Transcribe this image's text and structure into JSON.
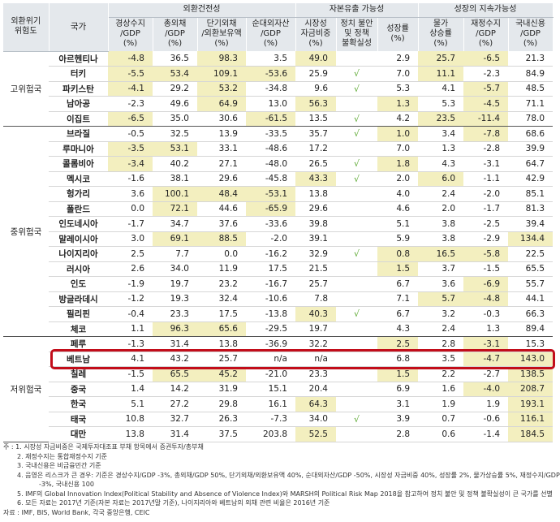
{
  "header": {
    "risk_group": "외환위기\n위험도",
    "country": "국가",
    "groups": [
      "외환건전성",
      "자본유출 가능성",
      "성장의 지속가능성"
    ],
    "columns": [
      "경상수지\n/GDP\n(%)",
      "총외채\n/GDP\n(%)",
      "단기외채\n/외환보유액\n(%)",
      "순대외자산\n/GDP\n(%)",
      "시장성\n자금비중\n(%)",
      "정치 불안\n및 정책\n불확실성",
      "성장률\n(%)",
      "물가\n상승률\n(%)",
      "재정수지\n/GDP\n(%)",
      "국내신용\n/GDP\n(%)"
    ]
  },
  "groups": [
    {
      "label": "고위험국",
      "rows": [
        {
          "country": "아르헨티나",
          "values": [
            "-4.8",
            "36.5",
            "98.3",
            "3.5",
            "49.0",
            "",
            "2.9",
            "25.7",
            "-6.5",
            "21.3"
          ],
          "hl": [
            1,
            0,
            1,
            0,
            1,
            0,
            0,
            1,
            1,
            0
          ]
        },
        {
          "country": "터키",
          "values": [
            "-5.5",
            "53.4",
            "109.1",
            "-53.6",
            "25.9",
            "√",
            "7.0",
            "11.1",
            "-2.3",
            "84.9"
          ],
          "hl": [
            1,
            1,
            1,
            1,
            0,
            0,
            0,
            1,
            0,
            0
          ]
        },
        {
          "country": "파키스탄",
          "values": [
            "-4.1",
            "29.2",
            "53.2",
            "-34.8",
            "9.6",
            "√",
            "5.3",
            "4.1",
            "-5.7",
            "48.5"
          ],
          "hl": [
            1,
            0,
            1,
            0,
            0,
            0,
            0,
            0,
            1,
            0
          ]
        },
        {
          "country": "남아공",
          "values": [
            "-2.3",
            "49.6",
            "64.9",
            "13.0",
            "56.3",
            "",
            "1.3",
            "5.3",
            "-4.5",
            "71.1"
          ],
          "hl": [
            0,
            0,
            1,
            0,
            1,
            0,
            1,
            0,
            1,
            0
          ]
        },
        {
          "country": "이집트",
          "values": [
            "-6.5",
            "35.0",
            "30.6",
            "-61.5",
            "13.5",
            "√",
            "4.2",
            "23.5",
            "-11.4",
            "78.0"
          ],
          "hl": [
            1,
            0,
            0,
            1,
            0,
            0,
            0,
            1,
            1,
            0
          ]
        }
      ]
    },
    {
      "label": "중위험국",
      "rows": [
        {
          "country": "브라질",
          "values": [
            "-0.5",
            "32.5",
            "13.9",
            "-33.5",
            "35.7",
            "√",
            "1.0",
            "3.4",
            "-7.8",
            "68.6"
          ],
          "hl": [
            0,
            0,
            0,
            0,
            0,
            0,
            1,
            0,
            1,
            0
          ]
        },
        {
          "country": "루마니아",
          "values": [
            "-3.5",
            "53.1",
            "33.1",
            "-48.6",
            "17.2",
            "",
            "7.0",
            "1.3",
            "-2.8",
            "39.9"
          ],
          "hl": [
            1,
            1,
            0,
            0,
            0,
            0,
            0,
            0,
            0,
            0
          ]
        },
        {
          "country": "콜롬비아",
          "values": [
            "-3.4",
            "40.2",
            "27.1",
            "-48.0",
            "26.5",
            "√",
            "1.8",
            "4.3",
            "-3.1",
            "64.7"
          ],
          "hl": [
            1,
            0,
            0,
            0,
            0,
            0,
            1,
            0,
            0,
            0
          ]
        },
        {
          "country": "멕시코",
          "values": [
            "-1.6",
            "38.1",
            "29.6",
            "-45.8",
            "43.3",
            "√",
            "2.0",
            "6.0",
            "-1.1",
            "42.9"
          ],
          "hl": [
            0,
            0,
            0,
            0,
            1,
            0,
            0,
            1,
            0,
            0
          ]
        },
        {
          "country": "헝가리",
          "values": [
            "3.6",
            "100.1",
            "48.4",
            "-53.1",
            "13.8",
            "",
            "4.0",
            "2.4",
            "-2.0",
            "85.1"
          ],
          "hl": [
            0,
            1,
            1,
            1,
            0,
            0,
            0,
            0,
            0,
            0
          ]
        },
        {
          "country": "폴란드",
          "values": [
            "0.0",
            "72.1",
            "44.6",
            "-65.9",
            "29.6",
            "",
            "4.6",
            "2.0",
            "-1.7",
            "81.3"
          ],
          "hl": [
            0,
            1,
            0,
            1,
            0,
            0,
            0,
            0,
            0,
            0
          ]
        },
        {
          "country": "인도네시아",
          "values": [
            "-1.7",
            "34.7",
            "37.6",
            "-33.6",
            "39.8",
            "",
            "5.1",
            "3.8",
            "-2.5",
            "39.4"
          ],
          "hl": [
            0,
            0,
            0,
            0,
            0,
            0,
            0,
            0,
            0,
            0
          ]
        },
        {
          "country": "말레이시아",
          "values": [
            "3.0",
            "69.1",
            "88.5",
            "-2.0",
            "39.1",
            "",
            "5.9",
            "3.8",
            "-2.9",
            "134.4"
          ],
          "hl": [
            0,
            1,
            1,
            0,
            0,
            0,
            0,
            0,
            0,
            1
          ]
        },
        {
          "country": "나이지리아",
          "values": [
            "2.5",
            "7.7",
            "0.0",
            "-16.2",
            "32.9",
            "√",
            "0.8",
            "16.5",
            "-5.8",
            "22.5"
          ],
          "hl": [
            0,
            0,
            0,
            0,
            0,
            0,
            1,
            1,
            1,
            0
          ]
        },
        {
          "country": "러시아",
          "values": [
            "2.6",
            "34.0",
            "11.9",
            "17.5",
            "21.5",
            "",
            "1.5",
            "3.7",
            "-1.5",
            "65.5"
          ],
          "hl": [
            0,
            0,
            0,
            0,
            0,
            0,
            1,
            0,
            0,
            0
          ]
        },
        {
          "country": "인도",
          "values": [
            "-1.9",
            "19.7",
            "23.2",
            "-16.7",
            "25.7",
            "",
            "6.7",
            "3.6",
            "-6.9",
            "55.7"
          ],
          "hl": [
            0,
            0,
            0,
            0,
            0,
            0,
            0,
            0,
            1,
            0
          ]
        },
        {
          "country": "방글라데시",
          "values": [
            "-1.2",
            "19.3",
            "32.4",
            "-10.6",
            "7.8",
            "",
            "7.1",
            "5.7",
            "-4.8",
            "44.1"
          ],
          "hl": [
            0,
            0,
            0,
            0,
            0,
            0,
            0,
            1,
            1,
            0
          ]
        },
        {
          "country": "필리핀",
          "values": [
            "-0.4",
            "23.3",
            "17.5",
            "-13.8",
            "40.3",
            "√",
            "6.7",
            "3.2",
            "-0.3",
            "66.3"
          ],
          "hl": [
            0,
            0,
            0,
            0,
            1,
            0,
            0,
            0,
            0,
            0
          ]
        },
        {
          "country": "체코",
          "values": [
            "1.1",
            "96.3",
            "65.6",
            "-29.5",
            "19.7",
            "",
            "4.3",
            "2.4",
            "1.3",
            "89.4"
          ],
          "hl": [
            0,
            1,
            1,
            0,
            0,
            0,
            0,
            0,
            0,
            0
          ]
        }
      ]
    },
    {
      "label": "저위험국",
      "rows": [
        {
          "country": "페루",
          "values": [
            "-1.3",
            "31.4",
            "13.8",
            "-36.9",
            "32.2",
            "",
            "2.5",
            "2.8",
            "-3.1",
            "15.3"
          ],
          "hl": [
            0,
            0,
            0,
            0,
            0,
            0,
            1,
            0,
            1,
            0
          ]
        },
        {
          "country": "베트남",
          "values": [
            "4.1",
            "43.2",
            "25.7",
            "n/a",
            "n/a",
            "",
            "6.8",
            "3.5",
            "-4.7",
            "143.0"
          ],
          "hl": [
            0,
            0,
            0,
            0,
            0,
            0,
            0,
            0,
            1,
            1
          ]
        },
        {
          "country": "칠레",
          "values": [
            "-1.5",
            "65.5",
            "45.2",
            "-21.0",
            "23.3",
            "",
            "1.5",
            "2.2",
            "-2.7",
            "138.5"
          ],
          "hl": [
            0,
            1,
            1,
            0,
            0,
            0,
            1,
            0,
            0,
            1
          ]
        },
        {
          "country": "중국",
          "values": [
            "1.4",
            "14.2",
            "31.9",
            "15.1",
            "20.4",
            "",
            "6.9",
            "1.6",
            "-4.0",
            "208.7"
          ],
          "hl": [
            0,
            0,
            0,
            0,
            0,
            0,
            0,
            0,
            1,
            1
          ]
        },
        {
          "country": "한국",
          "values": [
            "5.1",
            "27.2",
            "29.8",
            "16.1",
            "64.3",
            "",
            "3.1",
            "1.9",
            "1.9",
            "193.1"
          ],
          "hl": [
            0,
            0,
            0,
            0,
            1,
            0,
            0,
            0,
            0,
            1
          ]
        },
        {
          "country": "태국",
          "values": [
            "10.8",
            "32.7",
            "26.3",
            "-7.3",
            "34.0",
            "√",
            "3.9",
            "0.7",
            "-0.6",
            "116.1"
          ],
          "hl": [
            0,
            0,
            0,
            0,
            0,
            0,
            0,
            0,
            0,
            1
          ]
        },
        {
          "country": "대만",
          "values": [
            "13.8",
            "31.4",
            "37.5",
            "203.8",
            "52.5",
            "",
            "2.8",
            "0.6",
            "-1.4",
            "184.5"
          ],
          "hl": [
            0,
            0,
            0,
            0,
            1,
            0,
            0,
            0,
            0,
            1
          ]
        }
      ]
    }
  ],
  "notes": [
    "주 : 1. 시장성 자금비중은 국제투자대조표 부채 항목에서 증권투자/총부채",
    "2. 재정수지는 통합재정수지 기준",
    "3. 국내신용은 비금융민간 기준",
    "4. 음영은 리스크가 큰 경우: 기준은 경상수지/GDP -3%, 총외채/GDP 50%, 단기외채/외환보유액 40%, 순대외자산/GDP -50%, 시장성 자금비중 40%, 성장률 2%, 물가상승률 5%, 재정수지/GDP",
    "-3%, 국내신용 100",
    "5. IMF의 Global Innovation Index(Political Stability and Absence of Violence Index)와 MARSH의 Political Risk Map 2018을 참고하여 정치 불안 및 정책 불확실성이 큰 국가를 선별",
    "6. 모든 자료는 2017년 기준(자본 자료는 2017년말 기준), 나이지리아와 베트남의 외채 관련 비율은 2016년 기준",
    "자료 : IMF, BIS, World Bank, 각국 중앙은행, CEIC"
  ],
  "highlight_color": "#f3efbf",
  "check_color": "#5aa82f",
  "emphasis_color": "#c20d1a",
  "emphasized_row": "베트남"
}
